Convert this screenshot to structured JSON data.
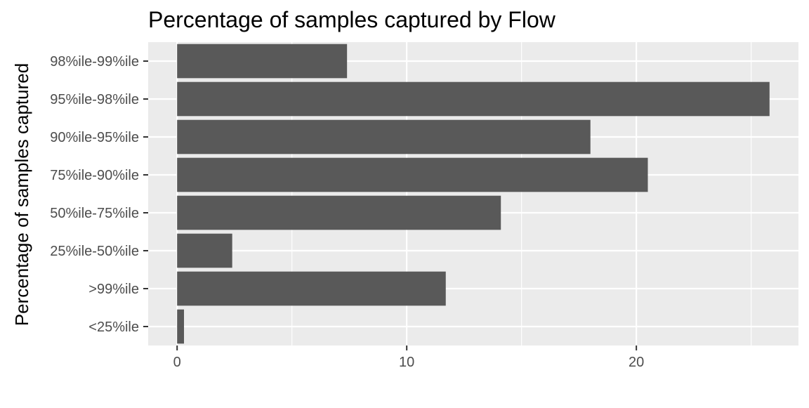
{
  "chart_data": {
    "type": "bar",
    "orientation": "horizontal",
    "title": "Percentage of samples captured by Flow",
    "xlabel": "",
    "ylabel": "Percentage of samples captured",
    "categories": [
      "<25%ile",
      ">99%ile",
      "25%ile-50%ile",
      "50%ile-75%ile",
      "75%ile-90%ile",
      "90%ile-95%ile",
      "95%ile-98%ile",
      "98%ile-99%ile"
    ],
    "values": [
      0.3,
      11.7,
      2.4,
      14.1,
      20.5,
      18.0,
      25.8,
      7.4
    ],
    "xlim": [
      -1.26,
      27.06
    ],
    "x_ticks": [
      0,
      10,
      20
    ],
    "x_minor_ticks": [
      5,
      15,
      25
    ],
    "grid": true,
    "legend": "none",
    "colors": {
      "bar": "#595959",
      "panel_background": "#ebebeb",
      "grid_line": "#ffffff",
      "tick_text": "#4d4d4d",
      "tick_mark": "#333333",
      "title_text": "#000000"
    }
  }
}
